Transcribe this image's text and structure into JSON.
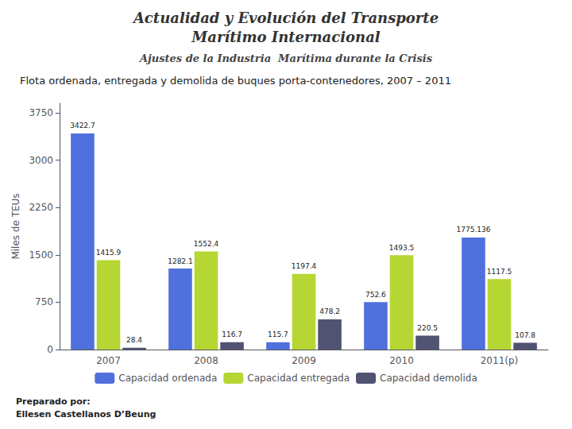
{
  "chart_data": {
    "type": "bar",
    "title": "Flota ordenada, entregada y demolida de buques porta-contenedores, 2007 – 2011",
    "subtitle": "Ajustes de la Industria  Marítima durante la Crisis",
    "annotations": [
      "Actualidad y Evolución del Transporte",
      "Marítimo Internacional",
      "Preparado por:",
      "Ellesen Castellanos D’Beung"
    ],
    "ylabel": "Miles de TEUs",
    "categories": [
      "2007",
      "2008",
      "2009",
      "2010",
      "2011(p)"
    ],
    "series": [
      {
        "name": "Capacidad ordenada",
        "values": [
          3422.7,
          1282.1,
          115.7,
          752.6,
          1775.136
        ]
      },
      {
        "name": "Capacidad entregada",
        "values": [
          1415.9,
          1552.4,
          1197.4,
          1493.5,
          1117.5
        ]
      },
      {
        "name": "Capacidad demolida",
        "values": [
          28.4,
          116.7,
          478.2,
          220.5,
          107.8
        ]
      }
    ],
    "ylim": [
      0,
      3900
    ],
    "yticks": [
      0,
      750,
      1500,
      2250,
      3000,
      3750
    ],
    "grid": false,
    "legend": "bottom",
    "data_labels": true
  }
}
